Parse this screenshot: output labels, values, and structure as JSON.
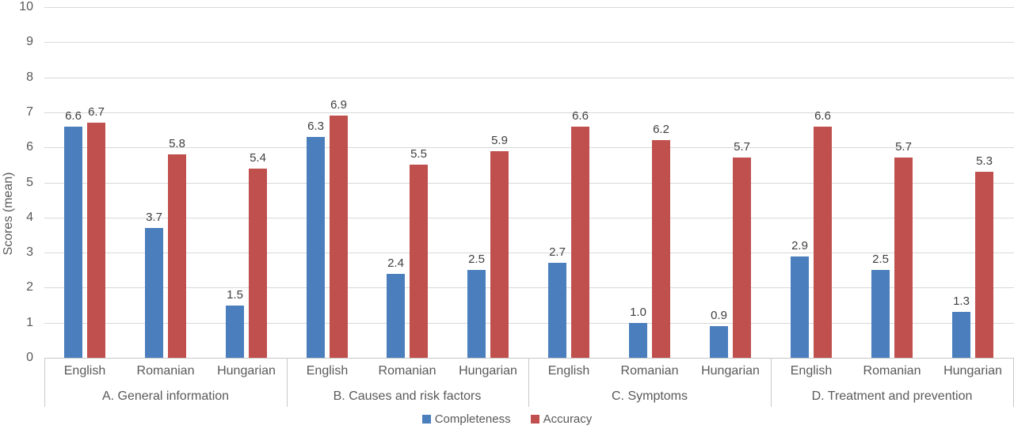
{
  "page": {
    "background": "#ffffff"
  },
  "chart_data": {
    "type": "bar",
    "title": "",
    "ylabel": "Scores (mean)",
    "xlabel": "",
    "ylim": [
      0,
      10
    ],
    "y_tick_step": 1,
    "y_ticks": [
      "0",
      "1",
      "2",
      "3",
      "4",
      "5",
      "6",
      "7",
      "8",
      "9",
      "10"
    ],
    "grid": true,
    "legend_position": "bottom",
    "group_labels": [
      "A. General information",
      "B. Causes and risk factors",
      "C. Symptoms",
      "D. Treatment and prevention"
    ],
    "subcategories": [
      "English",
      "Romanian",
      "Hungarian"
    ],
    "series": [
      {
        "name": "Completeness",
        "color": "#4A7EBD",
        "values": [
          [
            6.6,
            3.7,
            1.5
          ],
          [
            6.3,
            2.4,
            2.5
          ],
          [
            2.7,
            1.0,
            0.9
          ],
          [
            2.9,
            2.5,
            1.3
          ]
        ]
      },
      {
        "name": "Accuracy",
        "color": "#C0504D",
        "values": [
          [
            6.7,
            5.8,
            5.4
          ],
          [
            6.9,
            5.5,
            5.9
          ],
          [
            6.6,
            6.2,
            5.7
          ],
          [
            6.6,
            5.7,
            5.3
          ]
        ]
      }
    ],
    "data_label_format": "0.0",
    "colors": {
      "grid": "#D9D9D9",
      "axis_line": "#C6C6C6",
      "axis_text": "#595959",
      "value_label_text": "#404040"
    }
  }
}
